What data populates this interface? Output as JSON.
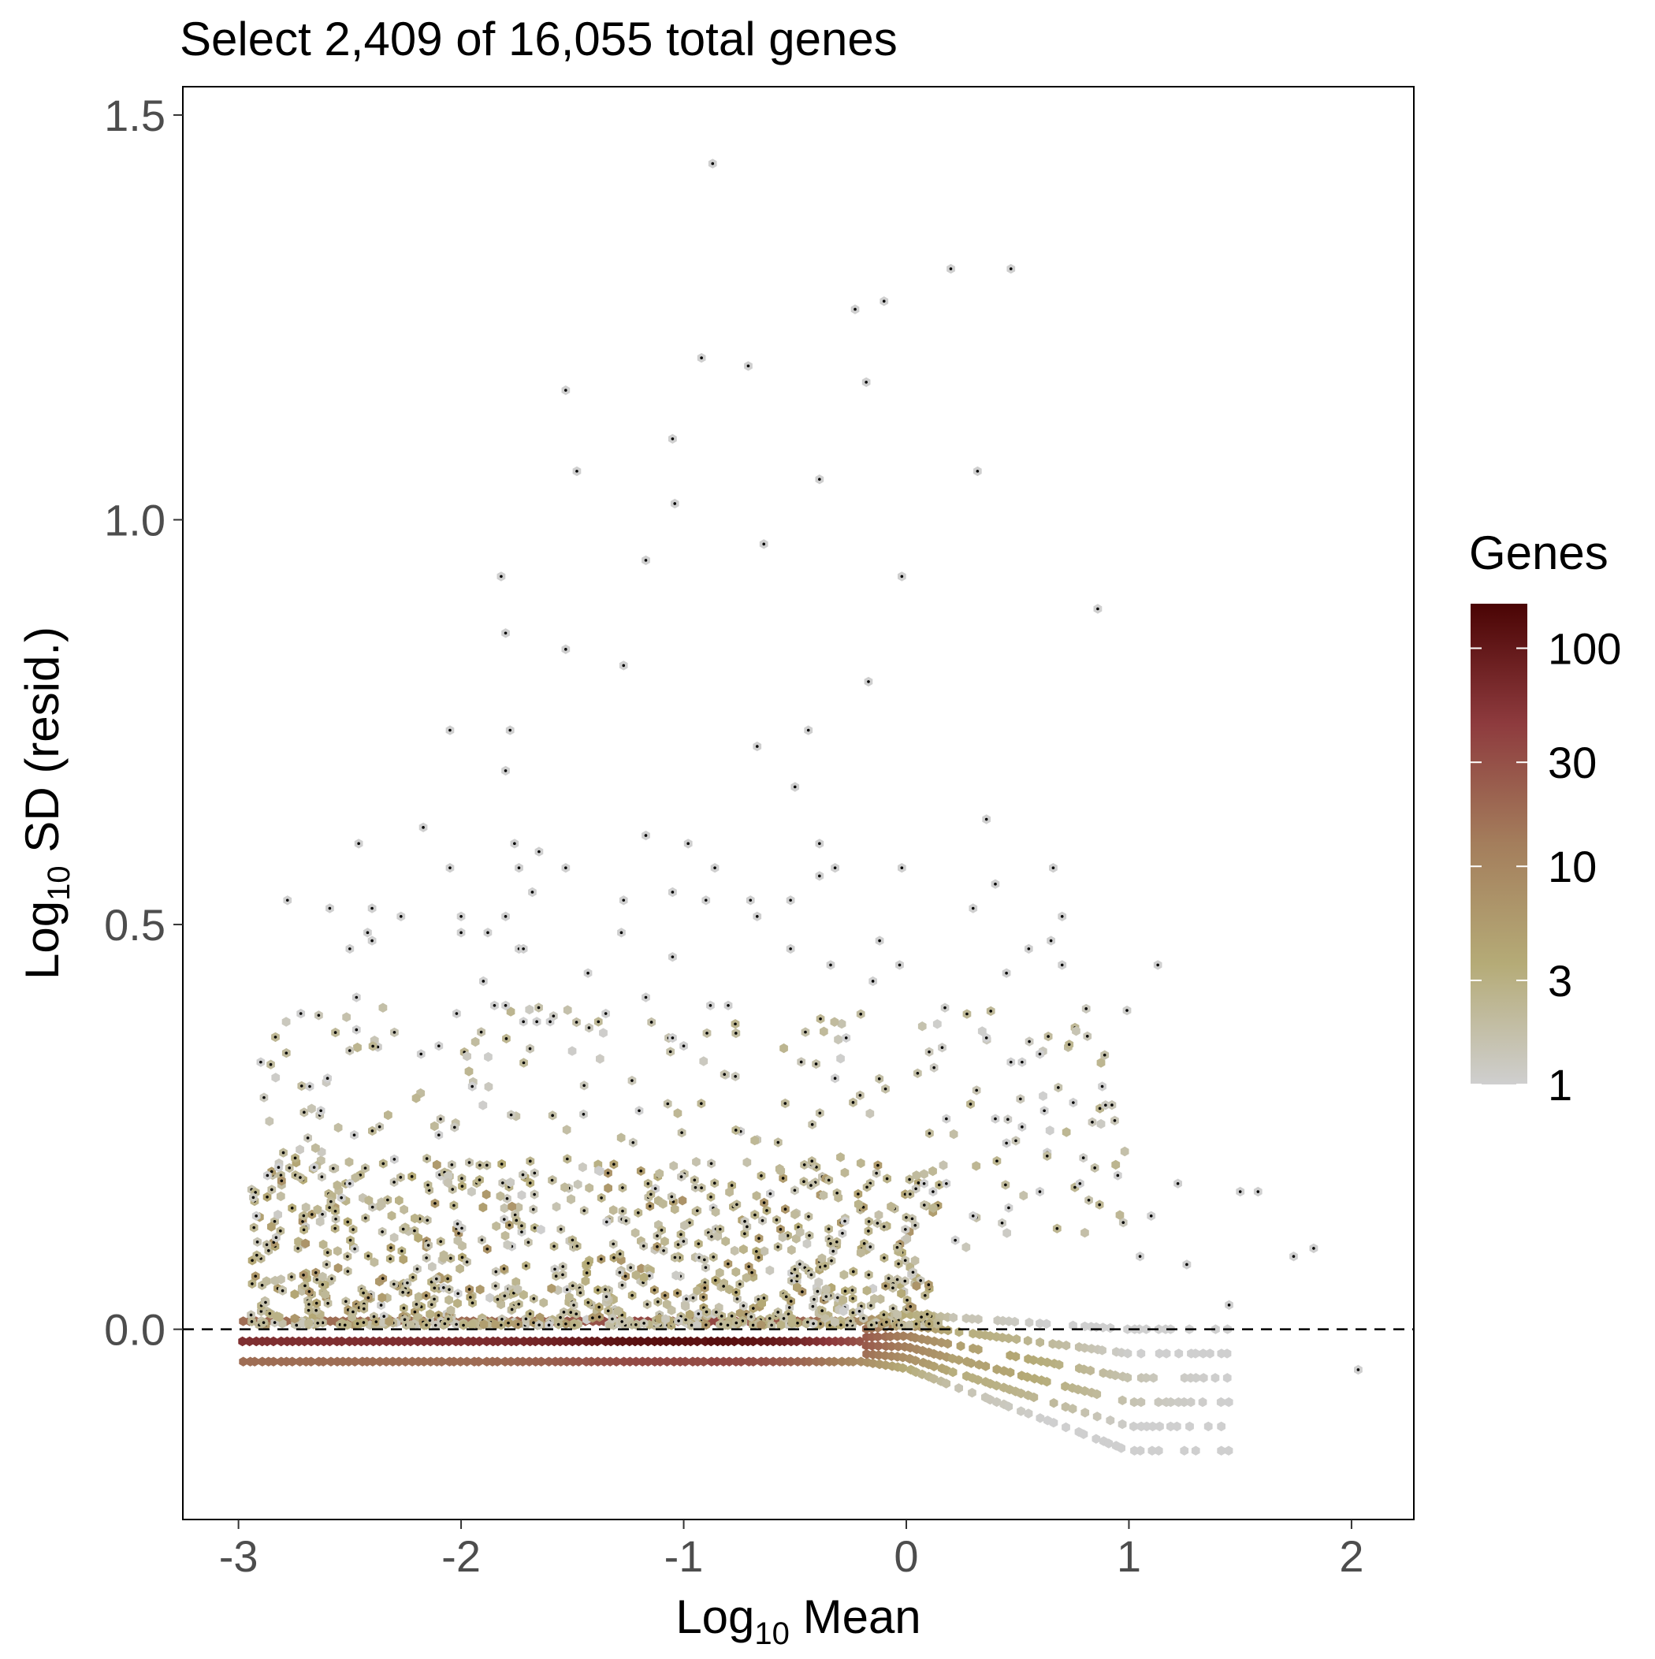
{
  "chart_data": {
    "type": "hexbin",
    "title": "Select 2,409 of 16,055 total genes",
    "xlabel": {
      "base": "Log",
      "sub": "10",
      "rest": " Mean"
    },
    "ylabel": {
      "base": "Log",
      "sub": "10",
      "rest": " SD (resid.)"
    },
    "xlim": [
      -3.25,
      2.28
    ],
    "ylim": [
      -0.235,
      1.535
    ],
    "x_ticks": [
      {
        "value": -3,
        "label": "-3"
      },
      {
        "value": -2,
        "label": "-2"
      },
      {
        "value": -1,
        "label": "-1"
      },
      {
        "value": 0,
        "label": "0"
      },
      {
        "value": 1,
        "label": "1"
      },
      {
        "value": 2,
        "label": "2"
      }
    ],
    "y_ticks": [
      {
        "value": 0.0,
        "label": "0.0"
      },
      {
        "value": 0.5,
        "label": "0.5"
      },
      {
        "value": 1.0,
        "label": "1.0"
      },
      {
        "value": 1.5,
        "label": "1.5"
      }
    ],
    "reference_line": {
      "y": 0.0,
      "style": "dashed"
    },
    "grid": false,
    "legend": {
      "title": "Genes",
      "position": "right",
      "scale": "log",
      "range": [
        1,
        160
      ],
      "breaks": [
        {
          "value": 100,
          "label": "100"
        },
        {
          "value": 30,
          "label": "30"
        },
        {
          "value": 10,
          "label": "10"
        },
        {
          "value": 3,
          "label": "3"
        },
        {
          "value": 1,
          "label": "1"
        }
      ],
      "colors": [
        "#cfcfcf",
        "#b5ab77",
        "#a47e5c",
        "#8e3b3e",
        "#4a0404"
      ]
    },
    "selected_marker_color": "#000000",
    "outlier_points": [
      [
        -0.87,
        1.44
      ],
      [
        0.2,
        1.31
      ],
      [
        0.47,
        1.31
      ],
      [
        -0.1,
        1.27
      ],
      [
        -0.23,
        1.26
      ],
      [
        -0.92,
        1.2
      ],
      [
        -0.71,
        1.19
      ],
      [
        -1.53,
        1.16
      ],
      [
        -0.18,
        1.17
      ],
      [
        -1.05,
        1.1
      ],
      [
        -1.48,
        1.06
      ],
      [
        -0.39,
        1.05
      ],
      [
        0.32,
        1.06
      ],
      [
        -1.04,
        1.02
      ],
      [
        -0.64,
        0.97
      ],
      [
        -1.17,
        0.95
      ],
      [
        -1.82,
        0.93
      ],
      [
        -0.02,
        0.93
      ],
      [
        0.86,
        0.89
      ],
      [
        -1.8,
        0.86
      ],
      [
        -1.53,
        0.84
      ],
      [
        -1.27,
        0.82
      ],
      [
        -0.17,
        0.8
      ],
      [
        -2.05,
        0.74
      ],
      [
        -1.78,
        0.74
      ],
      [
        -0.44,
        0.74
      ],
      [
        -0.67,
        0.72
      ],
      [
        -1.8,
        0.69
      ],
      [
        -0.5,
        0.67
      ],
      [
        0.36,
        0.63
      ],
      [
        -2.17,
        0.62
      ],
      [
        -1.17,
        0.61
      ],
      [
        -0.98,
        0.6
      ],
      [
        -2.46,
        0.6
      ],
      [
        -0.39,
        0.6
      ],
      [
        -1.76,
        0.6
      ],
      [
        -1.65,
        0.59
      ],
      [
        -0.86,
        0.57
      ],
      [
        -1.53,
        0.57
      ],
      [
        -2.05,
        0.57
      ],
      [
        -0.32,
        0.57
      ],
      [
        0.66,
        0.57
      ],
      [
        -0.02,
        0.57
      ],
      [
        -0.39,
        0.56
      ],
      [
        0.4,
        0.55
      ],
      [
        -1.74,
        0.57
      ],
      [
        -2.78,
        0.53
      ],
      [
        -1.27,
        0.53
      ],
      [
        -0.7,
        0.53
      ],
      [
        -0.9,
        0.53
      ],
      [
        -1.05,
        0.54
      ],
      [
        -0.52,
        0.53
      ],
      [
        -1.68,
        0.54
      ],
      [
        -2.59,
        0.52
      ],
      [
        -2.4,
        0.52
      ],
      [
        -2.27,
        0.51
      ],
      [
        -0.67,
        0.51
      ],
      [
        0.3,
        0.52
      ],
      [
        0.7,
        0.51
      ],
      [
        -2.0,
        0.51
      ],
      [
        -1.8,
        0.51
      ],
      [
        -1.88,
        0.49
      ],
      [
        -2.0,
        0.49
      ],
      [
        -2.42,
        0.49
      ],
      [
        -1.28,
        0.49
      ],
      [
        0.65,
        0.48
      ],
      [
        -0.12,
        0.48
      ],
      [
        -2.4,
        0.48
      ],
      [
        -1.74,
        0.47
      ],
      [
        -1.72,
        0.47
      ],
      [
        -2.5,
        0.47
      ],
      [
        -0.52,
        0.47
      ],
      [
        0.55,
        0.47
      ],
      [
        -1.05,
        0.46
      ],
      [
        0.7,
        0.45
      ],
      [
        -0.03,
        0.45
      ],
      [
        -0.34,
        0.45
      ],
      [
        1.13,
        0.45
      ],
      [
        -1.43,
        0.44
      ],
      [
        0.45,
        0.44
      ],
      [
        -0.15,
        0.43
      ],
      [
        -1.9,
        0.43
      ],
      [
        -1.17,
        0.41
      ],
      [
        -2.47,
        0.41
      ],
      [
        -0.88,
        0.4
      ],
      [
        -0.8,
        0.4
      ],
      [
        -1.85,
        0.4
      ],
      [
        -1.8,
        0.4
      ],
      [
        -2.72,
        0.39
      ],
      [
        -2.02,
        0.39
      ],
      [
        -1.35,
        0.39
      ],
      [
        -1.6,
        0.38
      ],
      [
        -1.66,
        0.38
      ],
      [
        -1.72,
        0.38
      ],
      [
        -2.47,
        0.37
      ],
      [
        -1.05,
        0.36
      ],
      [
        -0.27,
        0.36
      ],
      [
        0.36,
        0.36
      ],
      [
        -2.1,
        0.35
      ],
      [
        -1.0,
        0.35
      ],
      [
        -2.9,
        0.33
      ],
      [
        -2.18,
        0.34
      ],
      [
        0.47,
        0.33
      ],
      [
        0.52,
        0.33
      ],
      [
        0.6,
        0.34
      ],
      [
        -2.6,
        0.31
      ],
      [
        -0.32,
        0.31
      ],
      [
        -2.68,
        0.3
      ],
      [
        -1.95,
        0.3
      ],
      [
        0.88,
        0.3
      ],
      [
        -2.63,
        0.27
      ],
      [
        0.75,
        0.28
      ],
      [
        -1.2,
        0.27
      ],
      [
        0.18,
        0.26
      ],
      [
        -2.48,
        0.24
      ],
      [
        0.4,
        0.26
      ],
      [
        0.62,
        0.27
      ],
      [
        0.52,
        0.25
      ],
      [
        0.45,
        0.23
      ],
      [
        0.95,
        0.19
      ],
      [
        1.1,
        0.14
      ],
      [
        1.22,
        0.18
      ],
      [
        1.5,
        0.17
      ],
      [
        1.58,
        0.17
      ],
      [
        1.74,
        0.09
      ],
      [
        1.83,
        0.1
      ],
      [
        2.03,
        -0.05
      ],
      [
        1.26,
        0.08
      ],
      [
        1.05,
        0.09
      ],
      [
        1.45,
        0.03
      ],
      [
        0.78,
        0.18
      ],
      [
        0.6,
        0.17
      ],
      [
        0.46,
        0.15
      ],
      [
        0.3,
        0.14
      ],
      [
        0.22,
        0.11
      ],
      [
        0.12,
        0.17
      ],
      [
        0.08,
        0.18
      ],
      [
        0.18,
        0.18
      ],
      [
        -2.82,
        0.2
      ],
      [
        -2.87,
        0.19
      ],
      [
        -2.66,
        0.2
      ],
      [
        -2.92,
        0.14
      ],
      [
        -2.5,
        0.18
      ],
      [
        -2.3,
        0.21
      ],
      [
        -2.1,
        0.24
      ]
    ]
  }
}
